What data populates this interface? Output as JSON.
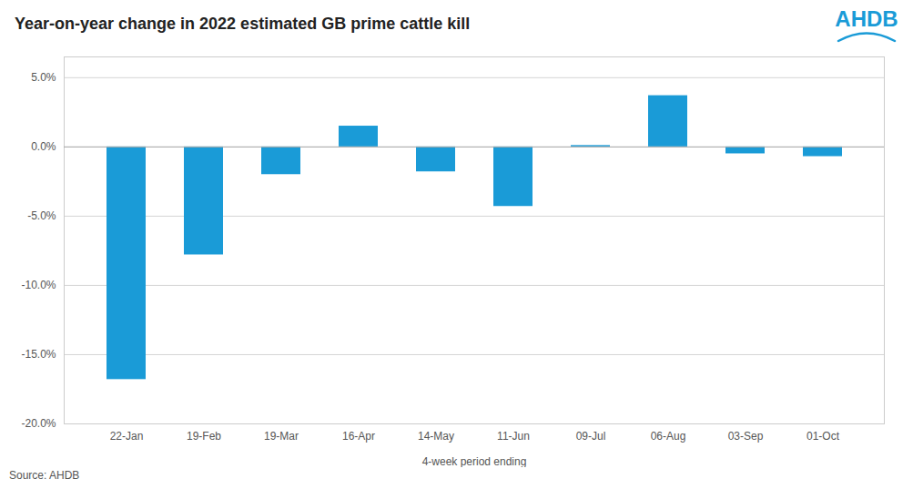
{
  "chart_data": {
    "type": "bar",
    "title": "Year-on-year change in 2022 estimated GB prime cattle kill",
    "xlabel": "4-week period ending",
    "annotations": [
      "Source: AHDB",
      "AHDB"
    ],
    "categories": [
      "22-Jan",
      "19-Feb",
      "19-Mar",
      "16-Apr",
      "14-May",
      "11-Jun",
      "09-Jul",
      "06-Aug",
      "03-Sep",
      "01-Oct"
    ],
    "values": [
      -16.8,
      -7.8,
      -2.0,
      1.5,
      -1.8,
      -4.3,
      0.1,
      3.7,
      -0.5,
      -0.7
    ],
    "color": "#1a9bd7",
    "ylim": [
      -20.0,
      6.5
    ],
    "yticks": [
      {
        "value": 5.0,
        "label": "5.0%"
      },
      {
        "value": 0.0,
        "label": "0.0%"
      },
      {
        "value": -5.0,
        "label": "-5.0%"
      },
      {
        "value": -10.0,
        "label": "-10.0%"
      },
      {
        "value": -15.0,
        "label": "-15.0%"
      },
      {
        "value": -20.0,
        "label": "-20.0%"
      }
    ],
    "grid": true
  }
}
